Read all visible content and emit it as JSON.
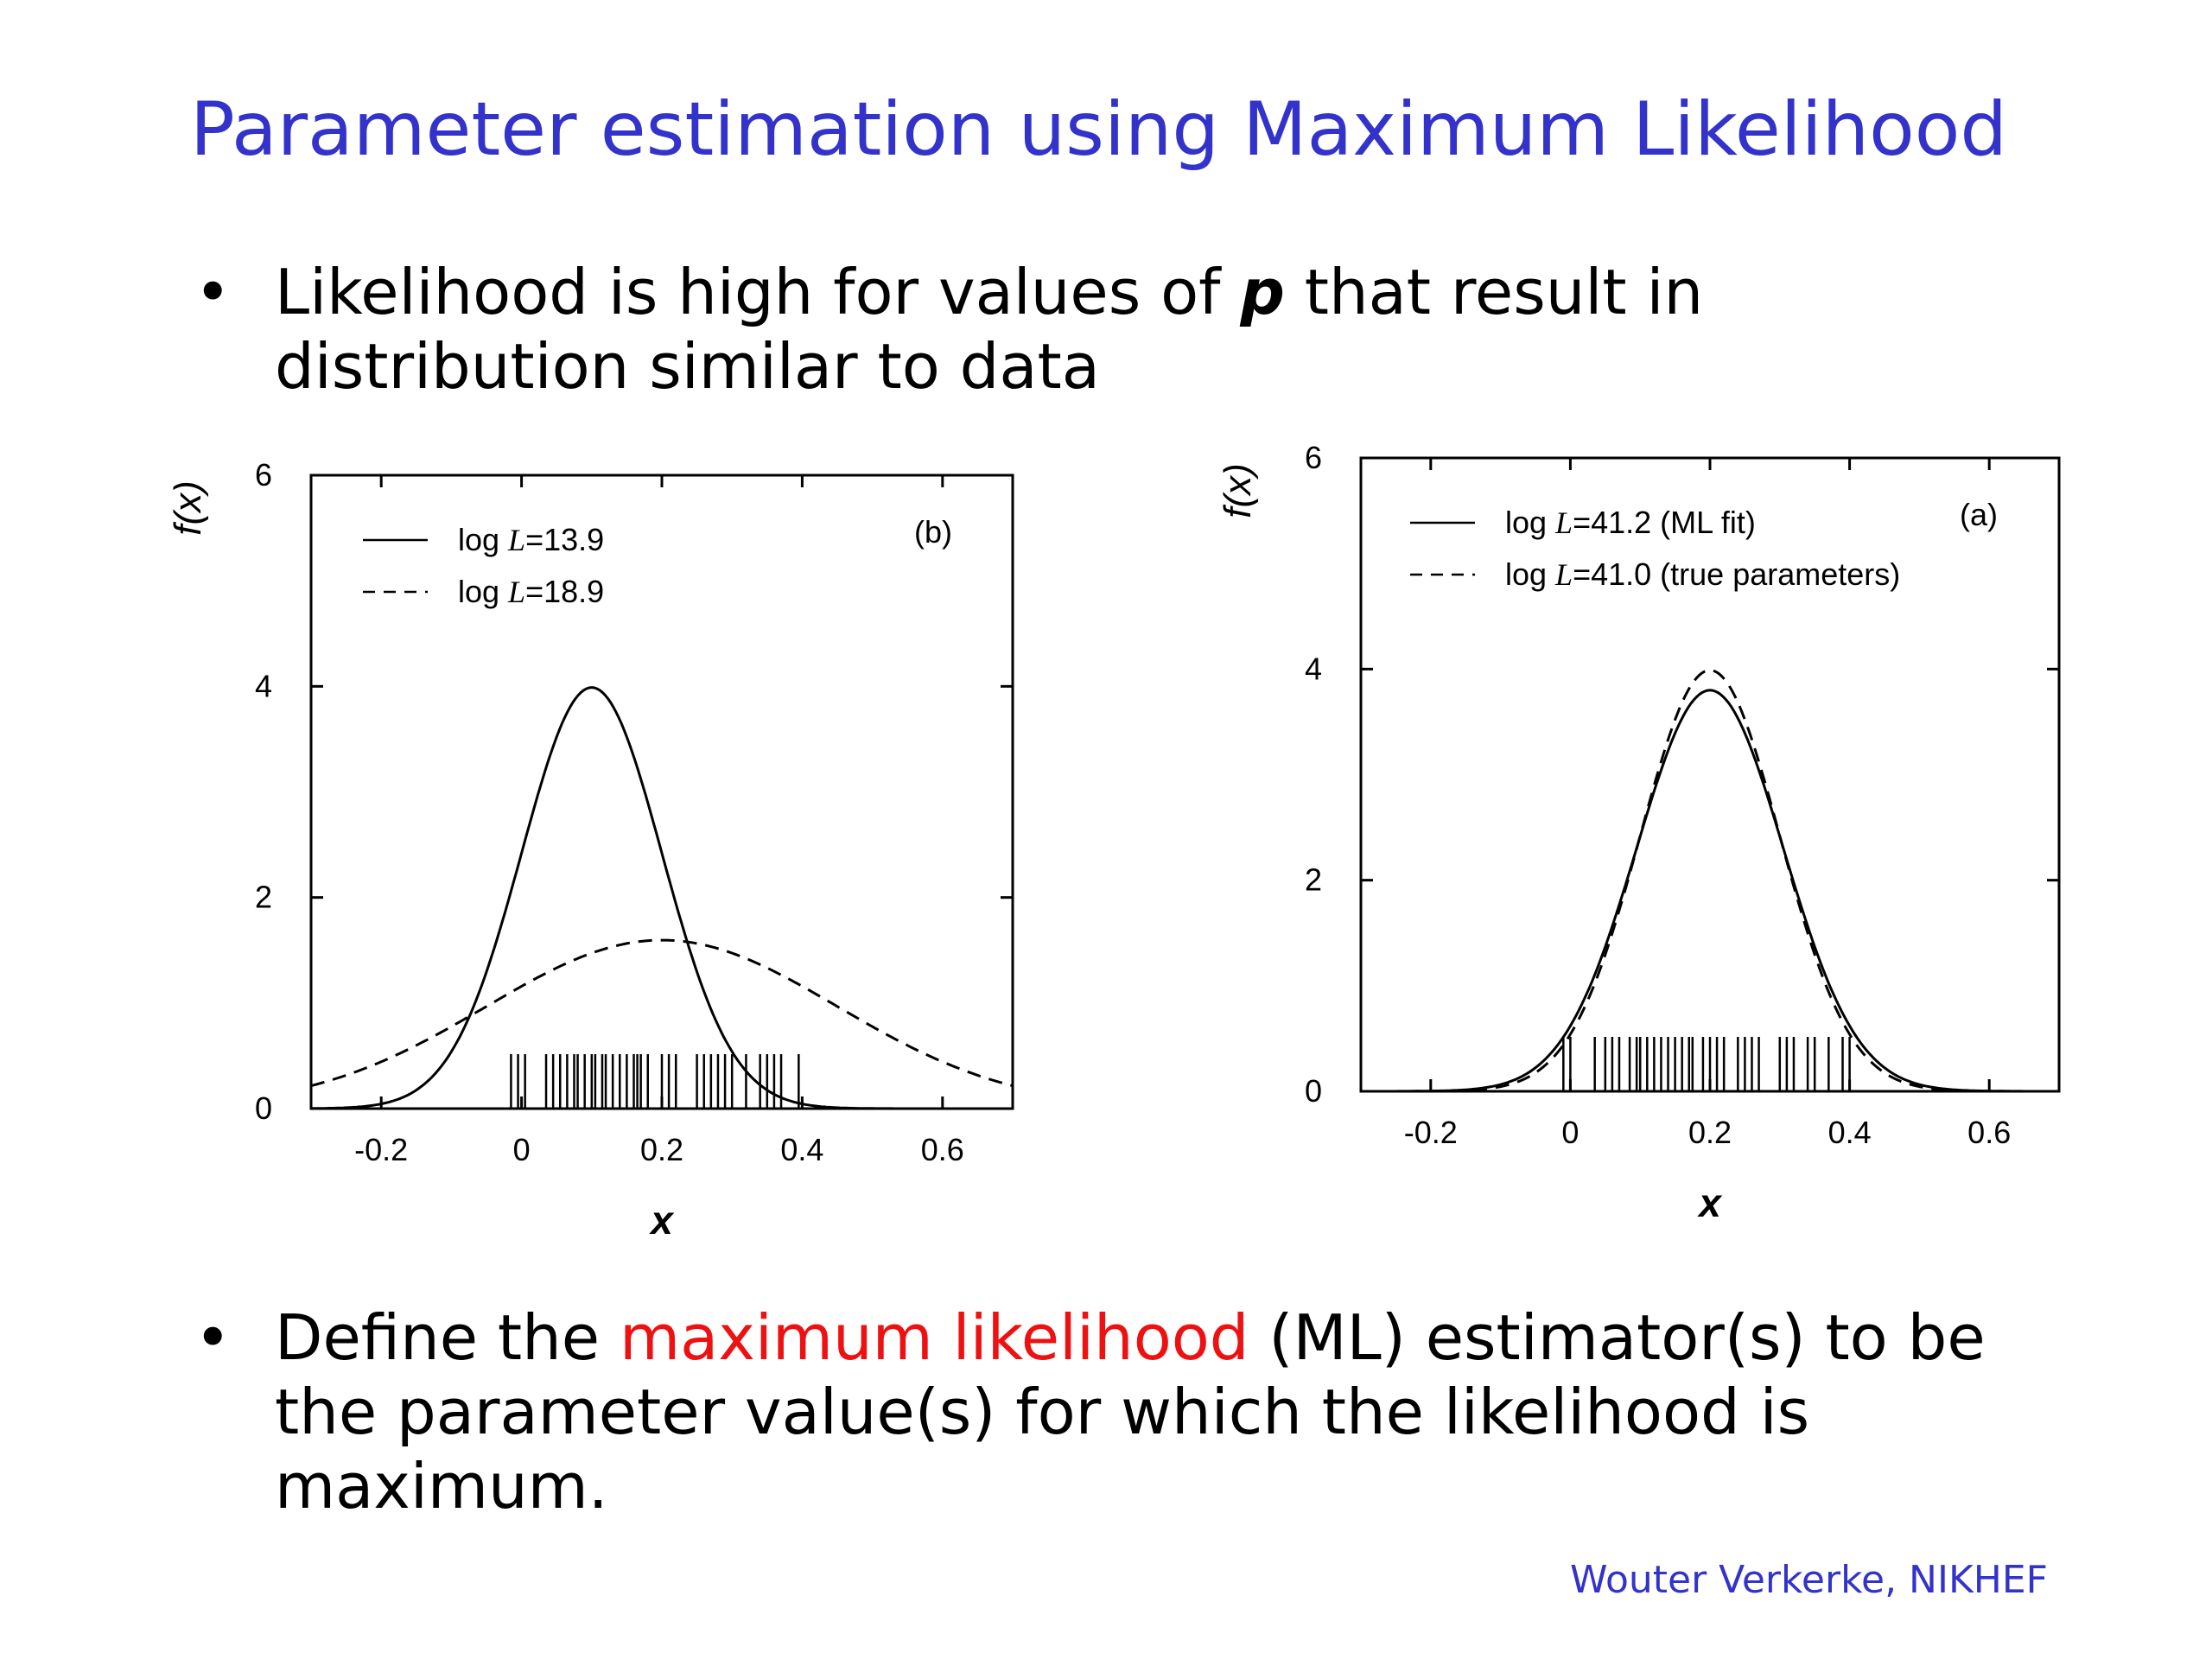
{
  "slide": {
    "title": "Parameter estimation using Maximum Likelihood",
    "bullet1": {
      "pre": "Likelihood is high for values of ",
      "emph": "p",
      "post": " that result in",
      "line2": "distribution similar to data"
    },
    "bullet2": {
      "pre": "Define the ",
      "highlight": "maximum likelihood",
      "post": " (ML) estimator(s) to be",
      "line2": "the parameter value(s) for which the likelihood is",
      "line3": "maximum."
    },
    "bullet_glyph": "•",
    "footer": "Wouter Verkerke, NIKHEF",
    "colors": {
      "title": "#3333cc",
      "highlight": "#ee1111",
      "footer": "#3333cc"
    }
  },
  "chart_data": [
    {
      "type": "line",
      "panel_label": "(b)",
      "xlabel": "x",
      "ylabel": "f(x)",
      "xlim": [
        -0.3,
        0.7
      ],
      "ylim": [
        0,
        6
      ],
      "xticks": [
        "-0.2",
        "0",
        "0.2",
        "0.4",
        "0.6"
      ],
      "xtick_values": [
        -0.2,
        0,
        0.2,
        0.4,
        0.6
      ],
      "yticks": [
        "0",
        "2",
        "4",
        "6"
      ],
      "ytick_values": [
        0,
        2,
        4,
        6
      ],
      "series": [
        {
          "name": "log L=13.9",
          "style": "solid",
          "mean": 0.1,
          "sigma": 0.1
        },
        {
          "name": "log L=18.9",
          "style": "dashed",
          "mean": 0.2,
          "sigma": 0.25
        }
      ],
      "legend": [
        {
          "prefix": "log ",
          "symbol": "L",
          "suffix": "=13.9",
          "style": "solid"
        },
        {
          "prefix": "log ",
          "symbol": "L",
          "suffix": "=18.9",
          "style": "dashed"
        }
      ],
      "rug": [
        -0.015,
        -0.005,
        0.005,
        0.035,
        0.045,
        0.055,
        0.065,
        0.075,
        0.08,
        0.09,
        0.1,
        0.105,
        0.115,
        0.12,
        0.13,
        0.14,
        0.15,
        0.16,
        0.165,
        0.17,
        0.18,
        0.2,
        0.21,
        0.22,
        0.25,
        0.26,
        0.27,
        0.28,
        0.29,
        0.3,
        0.32,
        0.34,
        0.35,
        0.36,
        0.37,
        0.395
      ]
    },
    {
      "type": "line",
      "panel_label": "(a)",
      "xlabel": "x",
      "ylabel": "f(x)",
      "xlim": [
        -0.3,
        0.7
      ],
      "ylim": [
        0,
        6
      ],
      "xticks": [
        "-0.2",
        "0",
        "0.2",
        "0.4",
        "0.6"
      ],
      "xtick_values": [
        -0.2,
        0,
        0.2,
        0.4,
        0.6
      ],
      "yticks": [
        "0",
        "2",
        "4",
        "6"
      ],
      "ytick_values": [
        0,
        2,
        4,
        6
      ],
      "series": [
        {
          "name": "log L=41.2 (ML fit)",
          "style": "solid",
          "mean": 0.2,
          "sigma": 0.105
        },
        {
          "name": "log L=41.0 (true parameters)",
          "style": "dashed",
          "mean": 0.2,
          "sigma": 0.1
        }
      ],
      "legend": [
        {
          "prefix": "log ",
          "symbol": "L",
          "suffix": "=41.2 (ML fit)",
          "style": "solid"
        },
        {
          "prefix": "log ",
          "symbol": "L",
          "suffix": "=41.0 (true parameters)",
          "style": "dashed"
        }
      ],
      "rug": [
        -0.01,
        0.0,
        0.035,
        0.05,
        0.06,
        0.07,
        0.085,
        0.095,
        0.1,
        0.11,
        0.12,
        0.13,
        0.14,
        0.15,
        0.16,
        0.17,
        0.175,
        0.19,
        0.2,
        0.21,
        0.22,
        0.24,
        0.25,
        0.26,
        0.27,
        0.3,
        0.31,
        0.32,
        0.34,
        0.35,
        0.37,
        0.39,
        0.4
      ]
    }
  ]
}
